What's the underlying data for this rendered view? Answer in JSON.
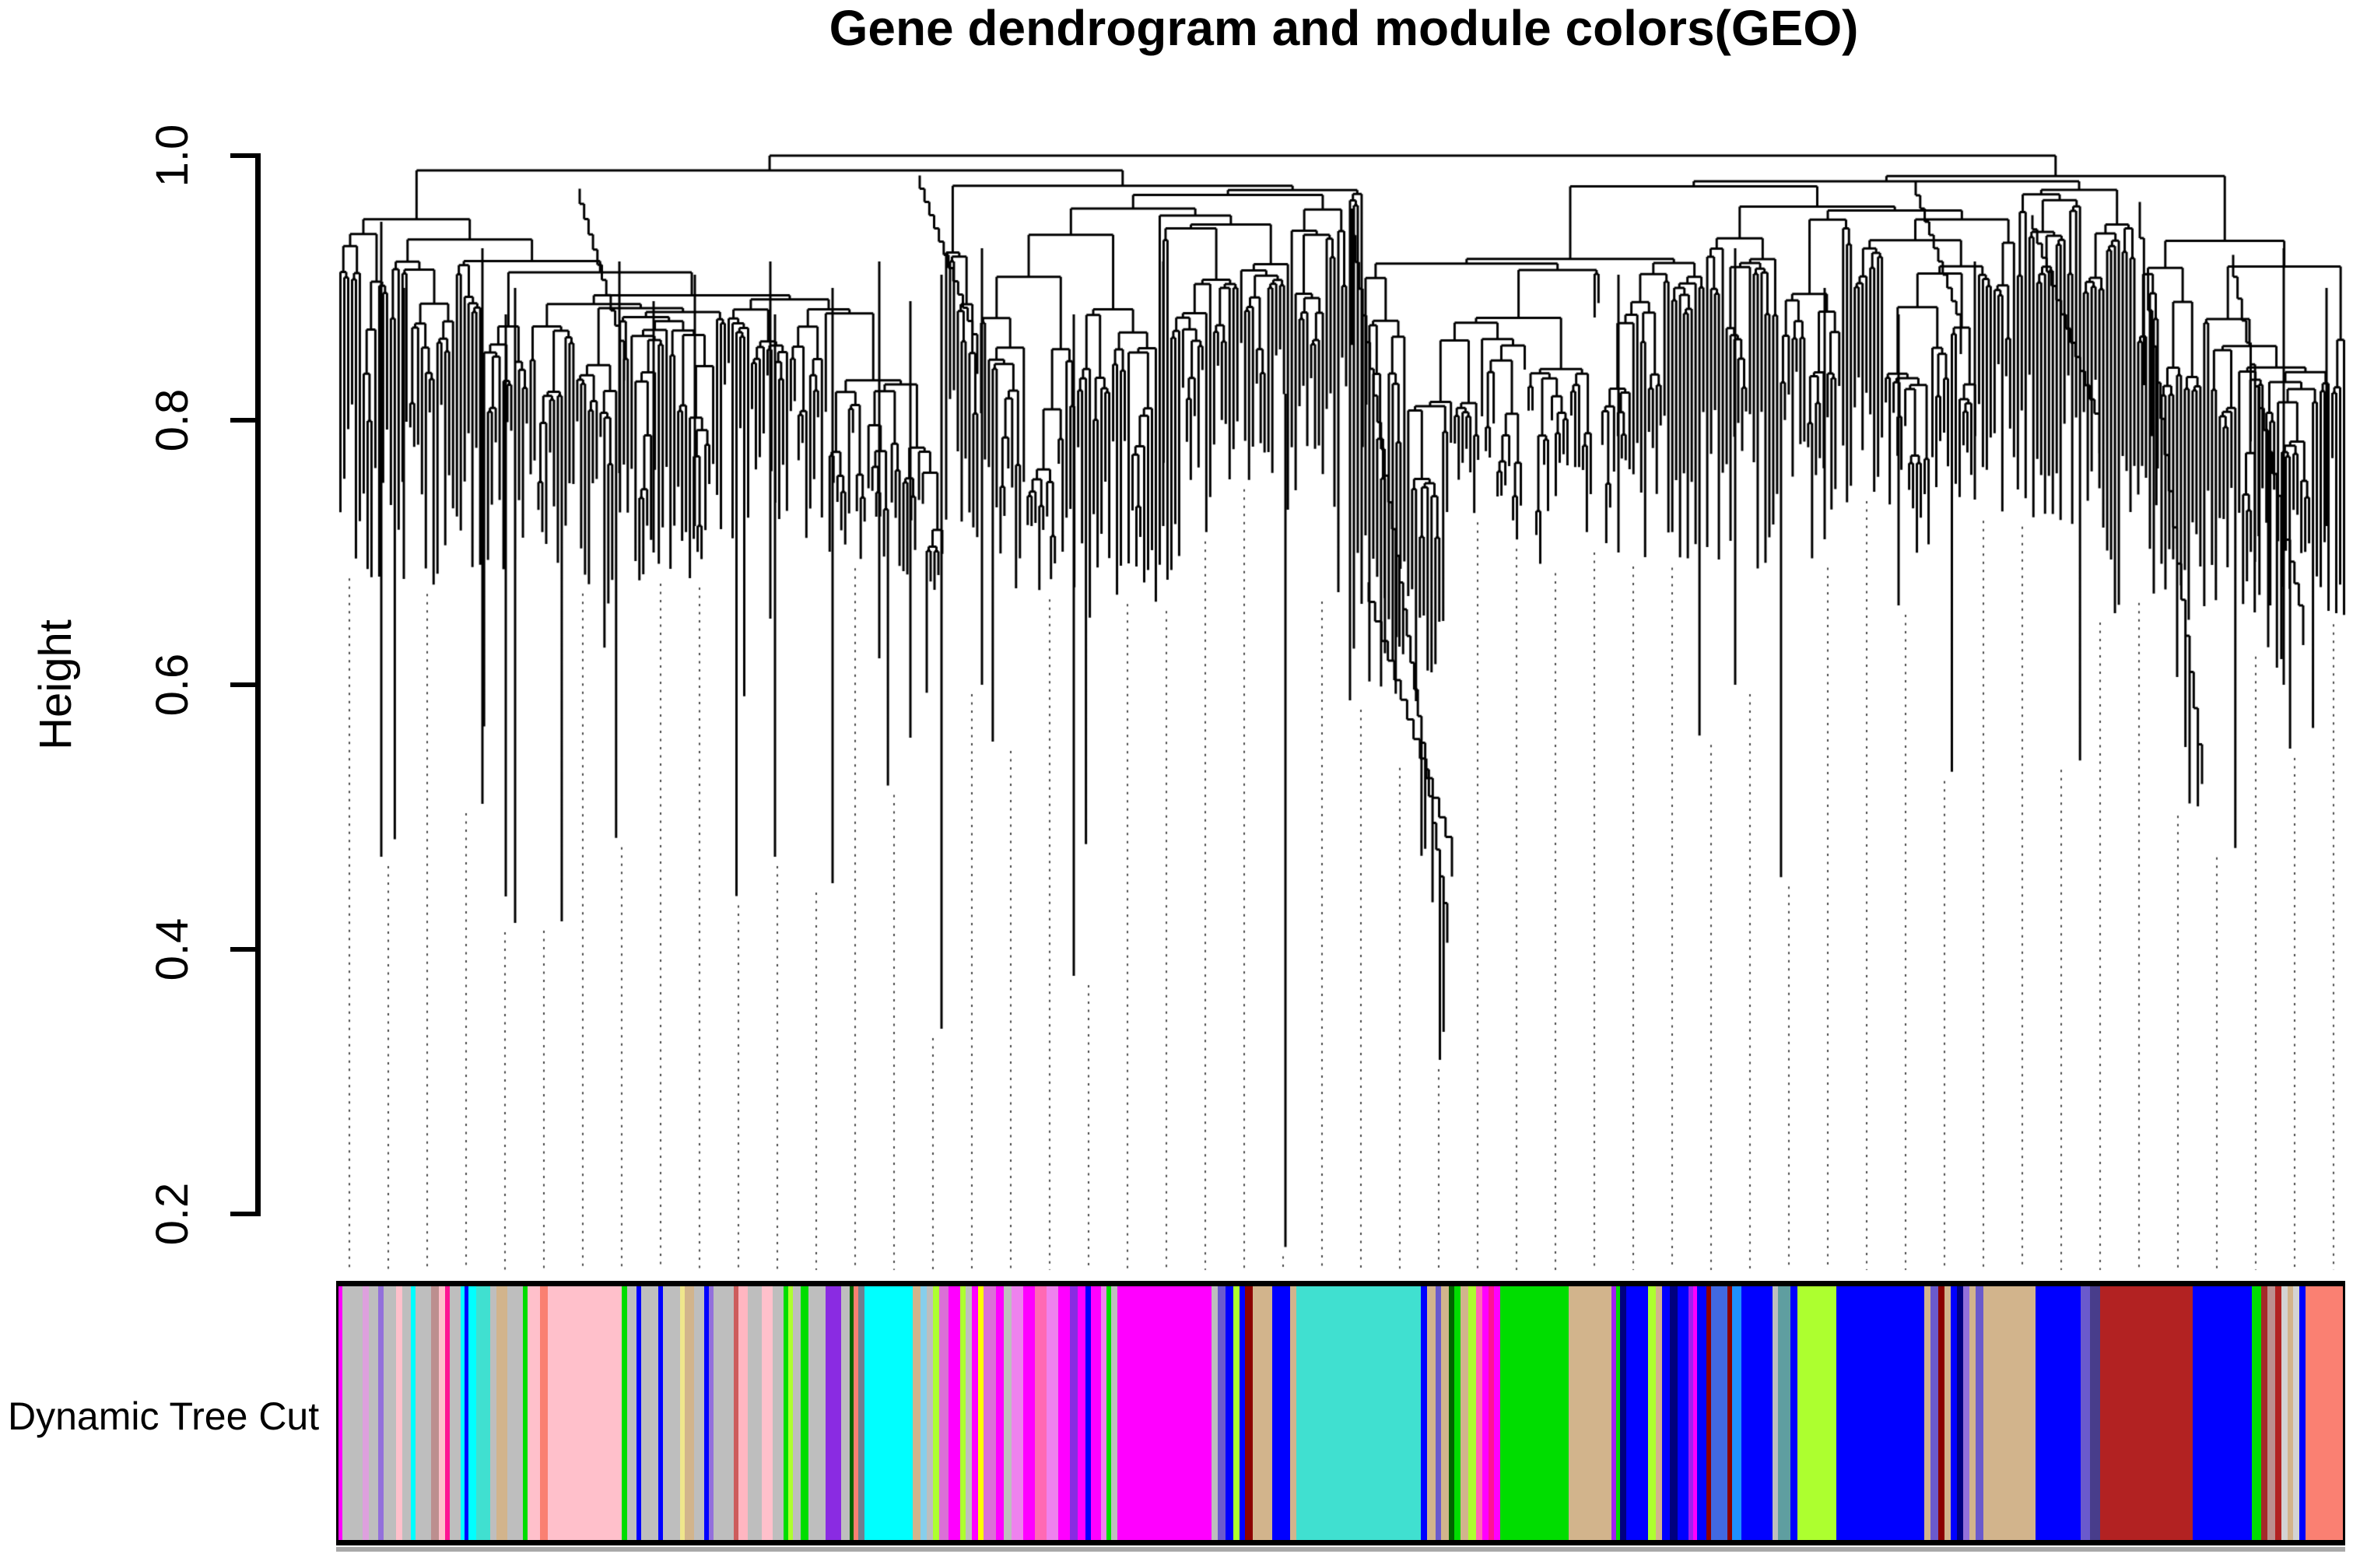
{
  "chart_data": {
    "type": "dendrogram",
    "title": "Gene dendrogram and module colors(GEO)",
    "ylabel": "Height",
    "ylim": [
      0.2,
      1.0
    ],
    "yticks": [
      1.0,
      0.8,
      0.6,
      0.4,
      0.2
    ],
    "ytick_labels": [
      "1.0",
      "0.8",
      "0.6",
      "0.4",
      "0.2"
    ],
    "grid": false,
    "x_axis": "genes (hierarchical clustering leaves, unlabeled)",
    "line_color": "#000000",
    "background": "#ffffff",
    "annotation_track": {
      "label": "Dynamic Tree Cut",
      "description": "WGCNA dynamic tree cut module color assignment per gene",
      "module_colors_present": [
        "grey",
        "pink",
        "lightpink",
        "magenta",
        "deeppink",
        "hotpink",
        "orchid",
        "plum",
        "violet",
        "mediumpurple",
        "blueviolet",
        "purple",
        "cyan",
        "turquoise",
        "skyblue",
        "blue",
        "royalblue",
        "dodgerblue",
        "navy",
        "slateblue",
        "darkslateblue",
        "green",
        "darkgreen",
        "greenyellow",
        "khaki",
        "yellow",
        "tan",
        "rosybrown",
        "indianred",
        "darkred",
        "firebrick",
        "brown",
        "cadetblue",
        "salmon",
        "lightgrey",
        "slategrey"
      ],
      "segments": [
        [
          "#FF00FF",
          5
        ],
        [
          "#BEBEBE",
          26
        ],
        [
          "#DDA0DD",
          8
        ],
        [
          "#BEBEBE",
          12
        ],
        [
          "#9370DB",
          7
        ],
        [
          "#BEBEBE",
          16
        ],
        [
          "#FFC0CB",
          8
        ],
        [
          "#BEBEBE",
          10
        ],
        [
          "#00FFFF",
          6
        ],
        [
          "#BEBEBE",
          20
        ],
        [
          "#BC8F8F",
          10
        ],
        [
          "#FFC0CB",
          8
        ],
        [
          "#FF1493",
          6
        ],
        [
          "#BEBEBE",
          14
        ],
        [
          "#00FFFF",
          5
        ],
        [
          "#0000FF",
          5
        ],
        [
          "#00FFFF",
          10
        ],
        [
          "#40E0D0",
          18
        ],
        [
          "#BEBEBE",
          8
        ],
        [
          "#D2B48C",
          14
        ],
        [
          "#BEBEBE",
          20
        ],
        [
          "#00DD00",
          6
        ],
        [
          "#FFC0CB",
          16
        ],
        [
          "#FA8072",
          10
        ],
        [
          "#FFC0CB",
          94
        ],
        [
          "#00DD00",
          7
        ],
        [
          "#BEBEBE",
          12
        ],
        [
          "#0000FF",
          6
        ],
        [
          "#BEBEBE",
          22
        ],
        [
          "#0000FF",
          6
        ],
        [
          "#BEBEBE",
          22
        ],
        [
          "#F0E68C",
          6
        ],
        [
          "#D2B48C",
          12
        ],
        [
          "#BEBEBE",
          12
        ],
        [
          "#0000FF",
          6
        ],
        [
          "#9370DB",
          6
        ],
        [
          "#BEBEBE",
          26
        ],
        [
          "#CD5C5C",
          6
        ],
        [
          "#FFB6C1",
          12
        ],
        [
          "#BEBEBE",
          18
        ],
        [
          "#FFC0CB",
          14
        ],
        [
          "#BEBEBE",
          14
        ],
        [
          "#00DD00",
          6
        ],
        [
          "#ADFF2F",
          6
        ],
        [
          "#BEBEBE",
          10
        ],
        [
          "#00DD00",
          10
        ],
        [
          "#BEBEBE",
          22
        ],
        [
          "#8A2BE2",
          20
        ],
        [
          "#BEBEBE",
          10
        ],
        [
          "#006400",
          5
        ],
        [
          "#FA8072",
          6
        ],
        [
          "#708090",
          8
        ],
        [
          "#00FFFF",
          62
        ],
        [
          "#D2B48C",
          10
        ],
        [
          "#87CEEB",
          8
        ],
        [
          "#BEBEBE",
          8
        ],
        [
          "#ADFF2F",
          8
        ],
        [
          "#DA70D6",
          12
        ],
        [
          "#FF00FF",
          15
        ],
        [
          "#ADFF2F",
          7
        ],
        [
          "#BEBEBE",
          8
        ],
        [
          "#FF00FF",
          8
        ],
        [
          "#FFFF00",
          7
        ],
        [
          "#DA70D6",
          15
        ],
        [
          "#FF00FF",
          10
        ],
        [
          "#BEBEBE",
          10
        ],
        [
          "#EE82EE",
          15
        ],
        [
          "#FF00FF",
          15
        ],
        [
          "#FF69B4",
          15
        ],
        [
          "#EE82EE",
          15
        ],
        [
          "#FF00FF",
          15
        ],
        [
          "#8A2BE2",
          10
        ],
        [
          "#FF00FF",
          10
        ],
        [
          "#0000FF",
          7
        ],
        [
          "#FF00FF",
          13
        ],
        [
          "#EE82EE",
          7
        ],
        [
          "#00DD00",
          6
        ],
        [
          "#BEBEBE",
          8
        ],
        [
          "#FF00FF",
          120
        ],
        [
          "#BEBEBE",
          8
        ],
        [
          "#6A5ACD",
          10
        ],
        [
          "#0000FF",
          10
        ],
        [
          "#ADFF2F",
          8
        ],
        [
          "#0000FF",
          7
        ],
        [
          "#8B0000",
          10
        ],
        [
          "#D2B48C",
          25
        ],
        [
          "#0000FF",
          22
        ],
        [
          "#D2B48C",
          8
        ],
        [
          "#40E0D0",
          160
        ],
        [
          "#0000FF",
          8
        ],
        [
          "#D2B48C",
          10
        ],
        [
          "#6A5ACD",
          7
        ],
        [
          "#D2B48C",
          10
        ],
        [
          "#006400",
          7
        ],
        [
          "#00DD00",
          8
        ],
        [
          "#D2B48C",
          10
        ],
        [
          "#ADFF2F",
          10
        ],
        [
          "#FF69B4",
          8
        ],
        [
          "#FF00FF",
          8
        ],
        [
          "#FF1493",
          7
        ],
        [
          "#FF00FF",
          8
        ],
        [
          "#00DD00",
          88
        ],
        [
          "#D2B48C",
          54
        ],
        [
          "#A020F0",
          6
        ],
        [
          "#00DD00",
          5
        ],
        [
          "#000080",
          8
        ],
        [
          "#0000FF",
          28
        ],
        [
          "#ADFF2F",
          10
        ],
        [
          "#D2B48C",
          8
        ],
        [
          "#0000FF",
          10
        ],
        [
          "#000080",
          10
        ],
        [
          "#0000FF",
          14
        ],
        [
          "#A020F0",
          6
        ],
        [
          "#FF00FF",
          5
        ],
        [
          "#0000FF",
          12
        ],
        [
          "#8B0000",
          6
        ],
        [
          "#4169E1",
          20
        ],
        [
          "#8B0000",
          6
        ],
        [
          "#1E90FF",
          12
        ],
        [
          "#0000FF",
          40
        ],
        [
          "#BEBEBE",
          7
        ],
        [
          "#5F9EA0",
          16
        ],
        [
          "#0000FF",
          9
        ],
        [
          "#ADFF2F",
          50
        ],
        [
          "#0000FF",
          112
        ],
        [
          "#D2B48C",
          8
        ],
        [
          "#6A5ACD",
          10
        ],
        [
          "#8B0000",
          8
        ],
        [
          "#D2B48C",
          8
        ],
        [
          "#0000FF",
          8
        ],
        [
          "#000080",
          8
        ],
        [
          "#9370DB",
          8
        ],
        [
          "#D2B48C",
          8
        ],
        [
          "#6A5ACD",
          10
        ],
        [
          "#D2B48C",
          66
        ],
        [
          "#0000FF",
          58
        ],
        [
          "#6A5ACD",
          12
        ],
        [
          "#483D8B",
          13
        ],
        [
          "#B22222",
          118
        ],
        [
          "#0000FF",
          76
        ],
        [
          "#00DD00",
          12
        ],
        [
          "#A52A2A",
          8
        ],
        [
          "#BC8F8F",
          10
        ],
        [
          "#B22222",
          8
        ],
        [
          "#D3D3D3",
          8
        ],
        [
          "#D2B48C",
          7
        ],
        [
          "#D3D3D3",
          7
        ],
        [
          "#0000FF",
          8
        ],
        [
          "#FA8072",
          48
        ]
      ]
    },
    "dendrogram_appearance": {
      "leaf_count": 517,
      "seed": 11,
      "merge_height_band": [
        0.85,
        1.0
      ],
      "leaf_hang_profile": [
        [
          0.0,
          0.18,
          0.745
        ],
        [
          0.18,
          0.33,
          0.78
        ],
        [
          0.33,
          0.42,
          0.73
        ],
        [
          0.42,
          0.505,
          0.8
        ],
        [
          0.505,
          0.552,
          0.66
        ],
        [
          0.552,
          0.645,
          0.91
        ],
        [
          0.645,
          0.72,
          0.75
        ],
        [
          0.72,
          0.8,
          0.8
        ],
        [
          0.8,
          0.88,
          0.78
        ],
        [
          0.88,
          1.0,
          0.71
        ]
      ],
      "deep_spikes": [
        [
          490,
          0.95,
          0.47
        ],
        [
          519,
          0.9,
          0.68
        ],
        [
          620,
          0.93,
          0.51
        ],
        [
          650,
          0.88,
          0.44
        ],
        [
          662,
          0.9,
          0.42
        ],
        [
          796,
          0.92,
          0.76
        ],
        [
          840,
          0.89,
          0.7
        ],
        [
          893,
          0.91,
          0.72
        ],
        [
          990,
          0.92,
          0.65
        ],
        [
          996,
          0.88,
          0.47
        ],
        [
          1070,
          0.9,
          0.45
        ],
        [
          1130,
          0.92,
          0.62
        ],
        [
          1170,
          0.89,
          0.56
        ],
        [
          1210,
          0.91,
          0.34
        ],
        [
          1262,
          0.93,
          0.6
        ],
        [
          1380,
          0.88,
          0.38
        ],
        [
          1495,
          0.92,
          0.72
        ],
        [
          1652,
          0.82,
          0.175
        ],
        [
          2080,
          0.91,
          0.7
        ],
        [
          2230,
          0.93,
          0.6
        ],
        [
          2345,
          0.9,
          0.71
        ],
        [
          2440,
          0.88,
          0.66
        ],
        [
          2538,
          0.92,
          0.74
        ],
        [
          2935,
          0.93,
          0.6
        ],
        [
          2990,
          0.9,
          0.72
        ]
      ],
      "cascades": [
        {
          "x0": 1737,
          "h0": 0.96,
          "x1": 1860,
          "h1": 0.435,
          "steps": 26,
          "hangs": true,
          "double": true
        },
        {
          "x0": 745,
          "h0": 0.975,
          "x1": 802,
          "h1": 0.86,
          "steps": 10
        },
        {
          "x0": 1182,
          "h0": 0.985,
          "x1": 1256,
          "h1": 0.865,
          "steps": 12
        },
        {
          "x0": 2462,
          "h0": 0.98,
          "x1": 2520,
          "h1": 0.88,
          "steps": 10
        },
        {
          "x0": 2612,
          "h0": 0.955,
          "x1": 2698,
          "h1": 0.805,
          "steps": 14
        },
        {
          "x0": 2750,
          "h0": 0.965,
          "x1": 2830,
          "h1": 0.555,
          "steps": 15,
          "hangs": true
        },
        {
          "x0": 2870,
          "h0": 0.925,
          "x1": 2960,
          "h1": 0.66,
          "steps": 16,
          "hangs": true
        }
      ],
      "dotted_leaf_lines": {
        "spacing_px": 50,
        "color": "#484848"
      }
    }
  }
}
